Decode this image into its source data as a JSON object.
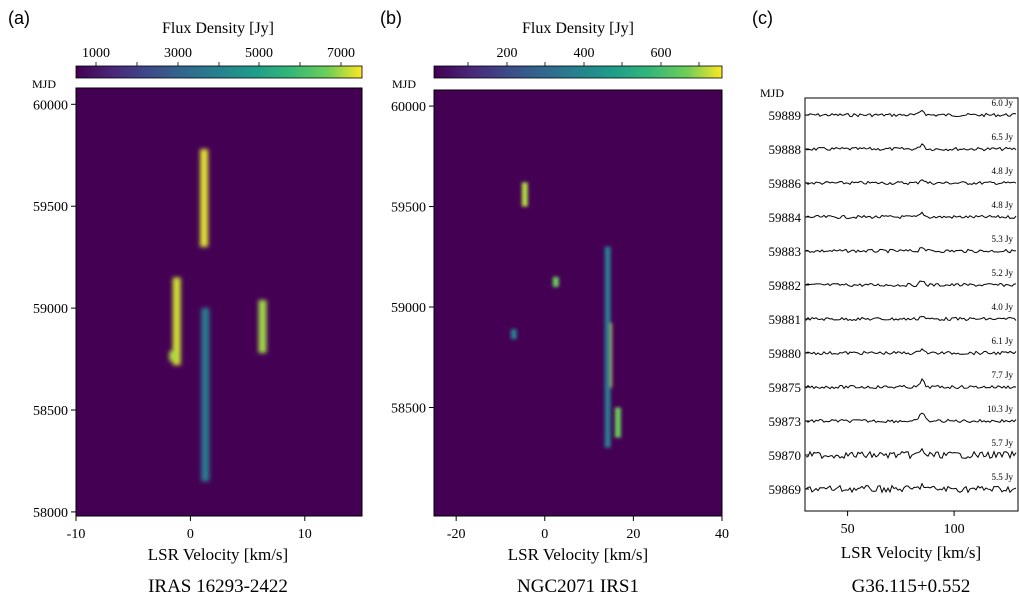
{
  "chart_data": [
    {
      "type": "heatmap",
      "panel_label": "(a)",
      "colorbar_title": "Flux Density [Jy]",
      "colorbar_ticks": [
        1000,
        3000,
        5000,
        7000
      ],
      "colorbar_range": [
        0,
        7500
      ],
      "ylabel": "MJD",
      "xlabel": "LSR Velocity [km/s]",
      "source": "IRAS 16293-2422",
      "xlim": [
        -10,
        15
      ],
      "ylim": [
        57980,
        60080
      ],
      "xticks": [
        -10,
        0,
        10
      ],
      "yticks": [
        58000,
        58500,
        59000,
        59500,
        60000
      ],
      "features": [
        {
          "v": 1.2,
          "mjd_min": 59300,
          "mjd_max": 59780,
          "peak": 7300
        },
        {
          "v": 1.3,
          "mjd_min": 58150,
          "mjd_max": 59000,
          "peak": 3500
        },
        {
          "v": -1.2,
          "mjd_min": 58720,
          "mjd_max": 59150,
          "peak": 7200
        },
        {
          "v": -1.5,
          "mjd_min": 58740,
          "mjd_max": 58790,
          "peak": 7000
        },
        {
          "v": 6.3,
          "mjd_min": 58780,
          "mjd_max": 59040,
          "peak": 6900
        }
      ]
    },
    {
      "type": "heatmap",
      "panel_label": "(b)",
      "colorbar_title": "Flux Density [Jy]",
      "colorbar_ticks": [
        200,
        400,
        600
      ],
      "colorbar_range": [
        0,
        750
      ],
      "ylabel": "MJD",
      "xlabel": "LSR Velocity [km/s]",
      "source": "NGC2071 IRS1",
      "xlim": [
        -25,
        40
      ],
      "ylim": [
        57960,
        60080
      ],
      "xticks": [
        -20,
        0,
        20,
        40
      ],
      "yticks": [
        58500,
        59000,
        59500,
        60000
      ],
      "features": [
        {
          "v": -4.5,
          "mjd_min": 59500,
          "mjd_max": 59620,
          "peak": 700
        },
        {
          "v": 2.5,
          "mjd_min": 59100,
          "mjd_max": 59150,
          "peak": 650
        },
        {
          "v": -7,
          "mjd_min": 58840,
          "mjd_max": 58890,
          "peak": 350
        },
        {
          "v": 14.5,
          "mjd_min": 58600,
          "mjd_max": 58920,
          "peak": 720
        },
        {
          "v": 14.2,
          "mjd_min": 58300,
          "mjd_max": 59300,
          "peak": 350
        },
        {
          "v": 16.5,
          "mjd_min": 58350,
          "mjd_max": 58500,
          "peak": 650
        }
      ]
    },
    {
      "type": "line",
      "panel_label": "(c)",
      "ylabel": "MJD",
      "xlabel": "LSR Velocity [km/s]",
      "source": "G36.115+0.552",
      "xlim": [
        30,
        130
      ],
      "xticks": [
        50,
        100
      ],
      "peak_velocity": 85,
      "series": [
        {
          "mjd": "59889",
          "flux": "6.0 Jy"
        },
        {
          "mjd": "59888",
          "flux": "6.5 Jy"
        },
        {
          "mjd": "59886",
          "flux": "4.8 Jy"
        },
        {
          "mjd": "59884",
          "flux": "4.8 Jy"
        },
        {
          "mjd": "59883",
          "flux": "5.3 Jy"
        },
        {
          "mjd": "59882",
          "flux": "5.2 Jy"
        },
        {
          "mjd": "59881",
          "flux": "4.0 Jy"
        },
        {
          "mjd": "59880",
          "flux": "6.1 Jy"
        },
        {
          "mjd": "59875",
          "flux": "7.7 Jy"
        },
        {
          "mjd": "59873",
          "flux": "10.3 Jy"
        },
        {
          "mjd": "59870",
          "flux": "5.7 Jy"
        },
        {
          "mjd": "59869",
          "flux": "5.5 Jy"
        }
      ]
    }
  ]
}
